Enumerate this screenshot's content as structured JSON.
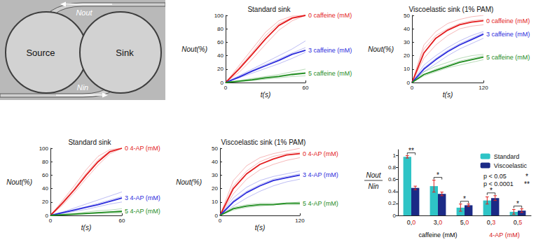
{
  "micrograph": {
    "left_label": "Source",
    "right_label": "Sink",
    "top_arrow_label": "Nout",
    "bottom_arrow_label": "Nin"
  },
  "chart_data": [
    {
      "type": "line",
      "title": "Standard sink",
      "xlabel": "t(s)",
      "ylabel": "Nout(%)",
      "x": [
        0,
        10,
        20,
        30,
        40,
        50,
        60
      ],
      "xlim": [
        0,
        60
      ],
      "xticks": [
        0,
        60
      ],
      "ylim": [
        0,
        100
      ],
      "yticks": [
        0,
        20,
        40,
        60,
        80,
        100
      ],
      "grid": false,
      "series": [
        {
          "color": "#e31a1c",
          "line_style": "faint",
          "values": [
            0,
            25,
            50,
            75,
            92,
            99,
            100
          ]
        },
        {
          "color": "#e31a1c",
          "line_style": "faint",
          "values": [
            0,
            15,
            35,
            57,
            78,
            92,
            100
          ]
        },
        {
          "color": "#e31a1c",
          "line_style": "faint",
          "values": [
            0,
            22,
            45,
            70,
            88,
            97,
            100
          ]
        },
        {
          "name": "0 caffeine (mM)",
          "color": "#e31a1c",
          "line_style": "solid",
          "values": [
            0,
            20,
            42,
            65,
            85,
            96,
            100
          ]
        },
        {
          "color": "#2b2bdc",
          "line_style": "faint",
          "values": [
            0,
            10,
            20,
            30,
            40,
            50,
            62
          ]
        },
        {
          "color": "#2b2bdc",
          "line_style": "faint",
          "values": [
            0,
            7,
            14,
            21,
            28,
            36,
            45
          ]
        },
        {
          "color": "#2b2bdc",
          "line_style": "faint",
          "values": [
            0,
            9,
            18,
            27,
            35,
            44,
            52
          ]
        },
        {
          "name": "3 caffeine (mM)",
          "color": "#2b2bdc",
          "line_style": "solid",
          "values": [
            0,
            8,
            17,
            25,
            33,
            42,
            48
          ]
        },
        {
          "color": "#1e8c1e",
          "line_style": "faint",
          "values": [
            0,
            3,
            6,
            9,
            12,
            16,
            20
          ]
        },
        {
          "color": "#1e8c1e",
          "line_style": "faint",
          "values": [
            0,
            1,
            3,
            5,
            7,
            9,
            10
          ]
        },
        {
          "color": "#1e8c1e",
          "line_style": "faint",
          "values": [
            0,
            2,
            5,
            8,
            10,
            13,
            15
          ]
        },
        {
          "name": "5 caffeine (mM)",
          "color": "#1e8c1e",
          "line_style": "solid",
          "values": [
            0,
            2,
            4,
            7,
            9,
            12,
            14
          ]
        }
      ]
    },
    {
      "type": "line",
      "title": "Viscoelastic sink (1% PAM)",
      "xlabel": "t(s)",
      "ylabel": "Nout(%)",
      "x": [
        0,
        20,
        40,
        60,
        80,
        100,
        120
      ],
      "xlim": [
        0,
        120
      ],
      "xticks": [
        0,
        120
      ],
      "ylim": [
        0,
        50
      ],
      "yticks": [
        0,
        10,
        20,
        30,
        40,
        50
      ],
      "grid": false,
      "series": [
        {
          "color": "#e31a1c",
          "line_style": "faint",
          "values": [
            0,
            28,
            38,
            44,
            47,
            49,
            50
          ]
        },
        {
          "color": "#e31a1c",
          "line_style": "faint",
          "values": [
            0,
            18,
            28,
            35,
            40,
            42,
            43
          ]
        },
        {
          "color": "#e31a1c",
          "line_style": "faint",
          "values": [
            0,
            25,
            35,
            40,
            44,
            46,
            47
          ]
        },
        {
          "name": "0 caffeine (mM)",
          "color": "#e31a1c",
          "line_style": "solid",
          "values": [
            0,
            22,
            33,
            39,
            43,
            45,
            46
          ]
        },
        {
          "color": "#2b2bdc",
          "line_style": "faint",
          "values": [
            0,
            13,
            20,
            26,
            31,
            35,
            38
          ]
        },
        {
          "color": "#2b2bdc",
          "line_style": "faint",
          "values": [
            0,
            8,
            14,
            20,
            25,
            29,
            33
          ]
        },
        {
          "color": "#2b2bdc",
          "line_style": "faint",
          "values": [
            0,
            11,
            18,
            24,
            29,
            33,
            37
          ]
        },
        {
          "name": "3 caffeine (mM)",
          "color": "#2b2bdc",
          "line_style": "solid",
          "values": [
            0,
            10,
            17,
            23,
            28,
            32,
            36
          ]
        },
        {
          "color": "#1e8c1e",
          "line_style": "faint",
          "values": [
            0,
            8,
            12,
            15,
            18,
            20,
            21
          ]
        },
        {
          "color": "#1e8c1e",
          "line_style": "faint",
          "values": [
            0,
            5,
            8,
            11,
            13,
            15,
            17
          ]
        },
        {
          "color": "#1e8c1e",
          "line_style": "faint",
          "values": [
            0,
            6,
            10,
            13,
            16,
            18,
            20
          ]
        },
        {
          "name": "5 caffeine (mM)",
          "color": "#1e8c1e",
          "line_style": "solid",
          "values": [
            0,
            6,
            9,
            12,
            15,
            17,
            19
          ]
        }
      ]
    },
    {
      "type": "line",
      "title": "Standard sink",
      "xlabel": "t(s)",
      "ylabel": "Nout(%)",
      "x": [
        0,
        10,
        20,
        30,
        40,
        50,
        60
      ],
      "xlim": [
        0,
        60
      ],
      "xticks": [
        0,
        60
      ],
      "ylim": [
        0,
        100
      ],
      "yticks": [
        0,
        20,
        40,
        60,
        80,
        100
      ],
      "grid": false,
      "series": [
        {
          "color": "#e31a1c",
          "line_style": "faint",
          "values": [
            0,
            22,
            44,
            68,
            88,
            98,
            100
          ]
        },
        {
          "color": "#e31a1c",
          "line_style": "faint",
          "values": [
            0,
            15,
            34,
            55,
            75,
            92,
            100
          ]
        },
        {
          "color": "#e31a1c",
          "line_style": "faint",
          "values": [
            0,
            20,
            40,
            63,
            83,
            96,
            100
          ]
        },
        {
          "name": "0 4-AP (mM)",
          "color": "#e31a1c",
          "line_style": "solid",
          "values": [
            0,
            18,
            38,
            60,
            80,
            95,
            100
          ]
        },
        {
          "color": "#2b2bdc",
          "line_style": "faint",
          "values": [
            0,
            5,
            11,
            17,
            23,
            29,
            35
          ]
        },
        {
          "color": "#2b2bdc",
          "line_style": "faint",
          "values": [
            0,
            3,
            6,
            9,
            13,
            17,
            20
          ]
        },
        {
          "color": "#2b2bdc",
          "line_style": "faint",
          "values": [
            0,
            4,
            9,
            13,
            18,
            23,
            28
          ]
        },
        {
          "name": "3 4-AP (mM)",
          "color": "#2b2bdc",
          "line_style": "solid",
          "values": [
            0,
            4,
            8,
            12,
            16,
            21,
            26
          ]
        },
        {
          "color": "#1e8c1e",
          "line_style": "faint",
          "values": [
            0,
            2,
            3,
            5,
            7,
            8,
            10
          ]
        },
        {
          "color": "#1e8c1e",
          "line_style": "faint",
          "values": [
            0,
            1,
            1,
            2,
            3,
            3,
            4
          ]
        },
        {
          "color": "#1e8c1e",
          "line_style": "faint",
          "values": [
            0,
            1,
            2,
            3,
            4,
            5,
            7
          ]
        },
        {
          "name": "5 4-AP (mM)",
          "color": "#1e8c1e",
          "line_style": "solid",
          "values": [
            0,
            1,
            2,
            3,
            4,
            5,
            6
          ]
        }
      ]
    },
    {
      "type": "line",
      "title": "Viscoelastic sink (1% PAM)",
      "xlabel": "t(s)",
      "ylabel": "Nout(%)",
      "x": [
        0,
        20,
        40,
        60,
        80,
        100,
        120
      ],
      "xlim": [
        0,
        120
      ],
      "xticks": [
        0,
        120
      ],
      "ylim": [
        0,
        50
      ],
      "yticks": [
        0,
        10,
        20,
        30,
        40,
        50
      ],
      "grid": false,
      "series": [
        {
          "color": "#e31a1c",
          "line_style": "faint",
          "values": [
            0,
            26,
            37,
            43,
            46,
            48,
            50
          ]
        },
        {
          "color": "#e31a1c",
          "line_style": "faint",
          "values": [
            0,
            16,
            27,
            34,
            38,
            41,
            43
          ]
        },
        {
          "color": "#e31a1c",
          "line_style": "faint",
          "values": [
            0,
            22,
            33,
            40,
            44,
            46,
            47
          ]
        },
        {
          "name": "0 4-AP (mM)",
          "color": "#e31a1c",
          "line_style": "solid",
          "values": [
            0,
            20,
            31,
            38,
            42,
            45,
            46
          ]
        },
        {
          "color": "#2b2bdc",
          "line_style": "faint",
          "values": [
            0,
            13,
            21,
            26,
            29,
            31,
            33
          ]
        },
        {
          "color": "#2b2bdc",
          "line_style": "faint",
          "values": [
            0,
            7,
            13,
            18,
            22,
            25,
            27
          ]
        },
        {
          "color": "#2b2bdc",
          "line_style": "faint",
          "values": [
            0,
            11,
            18,
            23,
            27,
            29,
            31
          ]
        },
        {
          "name": "3 4-AP (mM)",
          "color": "#2b2bdc",
          "line_style": "solid",
          "values": [
            0,
            10,
            17,
            22,
            26,
            28,
            30
          ]
        },
        {
          "color": "#1e8c1e",
          "line_style": "faint",
          "values": [
            0,
            6,
            8,
            9,
            9,
            9,
            10
          ]
        },
        {
          "color": "#1e8c1e",
          "line_style": "faint",
          "values": [
            0,
            4,
            6,
            7,
            8,
            8,
            8
          ]
        },
        {
          "color": "#1e8c1e",
          "line_style": "faint",
          "values": [
            0,
            5,
            7,
            8,
            8,
            9,
            9
          ]
        },
        {
          "name": "5 4-AP (mM)",
          "color": "#1e8c1e",
          "line_style": "solid",
          "values": [
            0,
            5,
            7,
            8,
            8,
            9,
            9
          ]
        }
      ]
    },
    {
      "type": "bar",
      "ylabel_numerator": "Nout",
      "ylabel_denominator": "Nin",
      "categories": [
        "0,0",
        "3,0",
        "5,0",
        "0,3",
        "0,5"
      ],
      "ylim": [
        0,
        1.1
      ],
      "yticks": [
        0,
        0.2,
        0.4,
        0.6,
        0.8,
        1
      ],
      "grid": false,
      "legend": "top-right",
      "series": [
        {
          "name": "Standard",
          "color": "#2ec4c6",
          "values": [
            0.98,
            0.49,
            0.13,
            0.25,
            0.06
          ],
          "errors": [
            0.02,
            0.1,
            0.06,
            0.06,
            0.04
          ]
        },
        {
          "name": "Viscoelastic",
          "color": "#1b2a86",
          "values": [
            0.46,
            0.36,
            0.17,
            0.29,
            0.08
          ],
          "errors": [
            0.03,
            0.03,
            0.02,
            0.04,
            0.03
          ]
        }
      ],
      "significance": [
        "**",
        "*",
        "*",
        "*",
        "*"
      ],
      "p_values": [
        {
          "label": "p < 0.05",
          "mark": "*"
        },
        {
          "label": "p < 0.0001",
          "mark": "**"
        }
      ],
      "annotations": [
        {
          "text": "caffeine (mM)",
          "color": "#000000"
        },
        {
          "text": "4-AP (mM)",
          "color": "#d62020"
        }
      ]
    }
  ]
}
